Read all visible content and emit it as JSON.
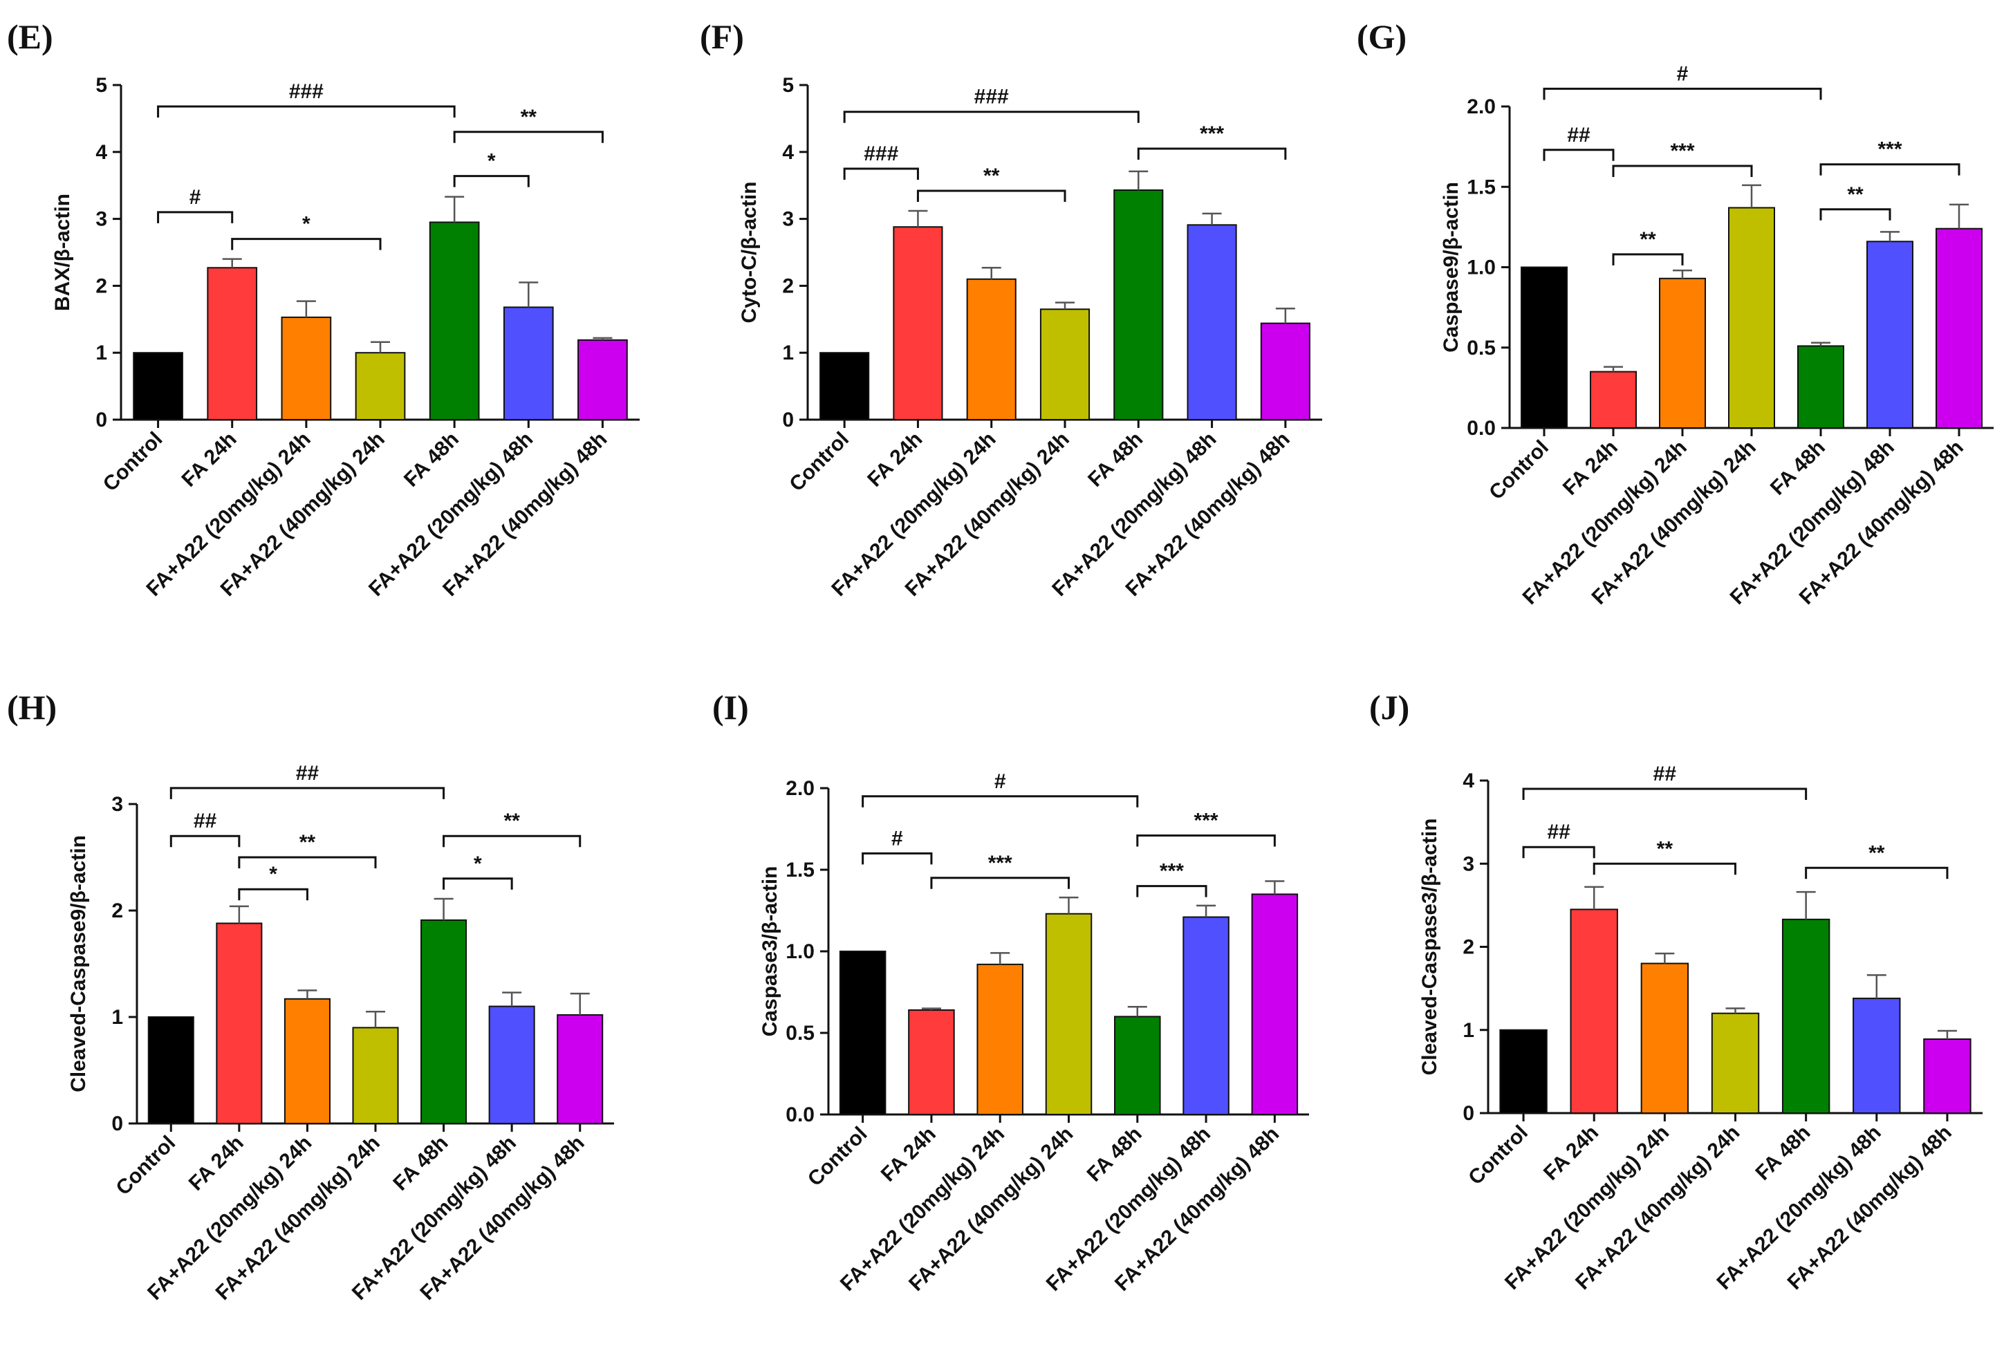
{
  "figure": {
    "categories": [
      "Control",
      "FA 24h",
      "FA+A22 (20mg/kg) 24h",
      "FA+A22 (40mg/kg) 24h",
      "FA 48h",
      "FA+A22 (20mg/kg) 48h",
      "FA+A22 (40mg/kg) 48h"
    ],
    "bar_colors": [
      "#000000",
      "#ff3b3b",
      "#ff7f00",
      "#bfbf00",
      "#008000",
      "#5050ff",
      "#cc00ee"
    ]
  },
  "chart_data": [
    {
      "panel": "(E)",
      "type": "bar",
      "ylabel": "BAX/β-actin",
      "ylim": [
        0,
        5
      ],
      "yticks": [
        "0",
        "1",
        "2",
        "3",
        "4",
        "5"
      ],
      "tick_values": [
        0,
        1,
        2,
        3,
        4,
        5
      ],
      "values": [
        1.0,
        2.27,
        1.53,
        1.0,
        2.95,
        1.68,
        1.19
      ],
      "errors": [
        0,
        0.13,
        0.24,
        0.16,
        0.38,
        0.37,
        0.03
      ],
      "significance": [
        {
          "from": 0,
          "to": 4,
          "y": 4.68,
          "label": "###"
        },
        {
          "from": 0,
          "to": 1,
          "y": 3.1,
          "label": "#"
        },
        {
          "from": 1,
          "to": 3,
          "y": 2.7,
          "label": "*"
        },
        {
          "from": 4,
          "to": 5,
          "y": 3.64,
          "label": "*"
        },
        {
          "from": 4,
          "to": 6,
          "y": 4.3,
          "label": "**"
        }
      ]
    },
    {
      "panel": "(F)",
      "type": "bar",
      "ylabel": "Cyto-C/β-actin",
      "ylim": [
        0,
        5
      ],
      "yticks": [
        "0",
        "1",
        "2",
        "3",
        "4",
        "5"
      ],
      "tick_values": [
        0,
        1,
        2,
        3,
        4,
        5
      ],
      "values": [
        1.0,
        2.88,
        2.1,
        1.65,
        3.43,
        2.91,
        1.44
      ],
      "errors": [
        0,
        0.24,
        0.17,
        0.1,
        0.28,
        0.17,
        0.22
      ],
      "significance": [
        {
          "from": 0,
          "to": 4,
          "y": 4.6,
          "label": "###"
        },
        {
          "from": 0,
          "to": 1,
          "y": 3.75,
          "label": "###"
        },
        {
          "from": 1,
          "to": 3,
          "y": 3.42,
          "label": "**"
        },
        {
          "from": 4,
          "to": 6,
          "y": 4.05,
          "label": "***"
        }
      ]
    },
    {
      "panel": "(G)",
      "type": "bar",
      "ylabel": "Caspase9/β-actin",
      "ylim": [
        0,
        2.0
      ],
      "yticks": [
        "0.0",
        "0.5",
        "1.0",
        "1.5",
        "2.0"
      ],
      "tick_values": [
        0,
        0.5,
        1.0,
        1.5,
        2.0
      ],
      "values": [
        1.0,
        0.35,
        0.93,
        1.37,
        0.51,
        1.16,
        1.24
      ],
      "errors": [
        0,
        0.03,
        0.05,
        0.14,
        0.02,
        0.06,
        0.15
      ],
      "significance": [
        {
          "from": 0,
          "to": 4,
          "y": 2.11,
          "label": "#"
        },
        {
          "from": 0,
          "to": 1,
          "y": 1.73,
          "label": "##"
        },
        {
          "from": 1,
          "to": 3,
          "y": 1.63,
          "label": "***"
        },
        {
          "from": 1,
          "to": 2,
          "y": 1.08,
          "label": "**"
        },
        {
          "from": 4,
          "to": 5,
          "y": 1.36,
          "label": "**"
        },
        {
          "from": 4,
          "to": 6,
          "y": 1.64,
          "label": "***"
        }
      ]
    },
    {
      "panel": "(H)",
      "type": "bar",
      "ylabel": "Cleaved-Caspase9/β-actin",
      "ylim": [
        0,
        3
      ],
      "yticks": [
        "0",
        "1",
        "2",
        "3"
      ],
      "tick_values": [
        0,
        1,
        2,
        3
      ],
      "values": [
        1.0,
        1.88,
        1.17,
        0.9,
        1.91,
        1.1,
        1.02
      ],
      "errors": [
        0,
        0.16,
        0.08,
        0.15,
        0.2,
        0.13,
        0.2
      ],
      "significance": [
        {
          "from": 0,
          "to": 4,
          "y": 3.15,
          "label": "##"
        },
        {
          "from": 0,
          "to": 1,
          "y": 2.7,
          "label": "##"
        },
        {
          "from": 1,
          "to": 3,
          "y": 2.5,
          "label": "**"
        },
        {
          "from": 1,
          "to": 2,
          "y": 2.2,
          "label": "*"
        },
        {
          "from": 4,
          "to": 5,
          "y": 2.3,
          "label": "*"
        },
        {
          "from": 4,
          "to": 6,
          "y": 2.7,
          "label": "**"
        }
      ]
    },
    {
      "panel": "(I)",
      "type": "bar",
      "ylabel": "Caspase3/β-actin",
      "ylim": [
        0,
        2.0
      ],
      "yticks": [
        "0.0",
        "0.5",
        "1.0",
        "1.5",
        "2.0"
      ],
      "tick_values": [
        0,
        0.5,
        1.0,
        1.5,
        2.0
      ],
      "values": [
        1.0,
        0.64,
        0.92,
        1.23,
        0.6,
        1.21,
        1.35
      ],
      "errors": [
        0,
        0.01,
        0.07,
        0.1,
        0.06,
        0.07,
        0.08
      ],
      "significance": [
        {
          "from": 0,
          "to": 4,
          "y": 1.95,
          "label": "#"
        },
        {
          "from": 0,
          "to": 1,
          "y": 1.6,
          "label": "#"
        },
        {
          "from": 1,
          "to": 3,
          "y": 1.45,
          "label": "***"
        },
        {
          "from": 4,
          "to": 5,
          "y": 1.4,
          "label": "***"
        },
        {
          "from": 4,
          "to": 6,
          "y": 1.71,
          "label": "***"
        }
      ]
    },
    {
      "panel": "(J)",
      "type": "bar",
      "ylabel": "Cleaved-Caspase3/β-actin",
      "ylim": [
        0,
        4
      ],
      "yticks": [
        "0",
        "1",
        "2",
        "3",
        "4"
      ],
      "tick_values": [
        0,
        1,
        2,
        3,
        4
      ],
      "values": [
        1.0,
        2.45,
        1.8,
        1.2,
        2.33,
        1.38,
        0.89
      ],
      "errors": [
        0,
        0.27,
        0.12,
        0.06,
        0.33,
        0.28,
        0.1
      ],
      "significance": [
        {
          "from": 0,
          "to": 4,
          "y": 3.9,
          "label": "##"
        },
        {
          "from": 0,
          "to": 1,
          "y": 3.2,
          "label": "##"
        },
        {
          "from": 1,
          "to": 3,
          "y": 3.0,
          "label": "**"
        },
        {
          "from": 4,
          "to": 6,
          "y": 2.95,
          "label": "**"
        }
      ]
    }
  ]
}
